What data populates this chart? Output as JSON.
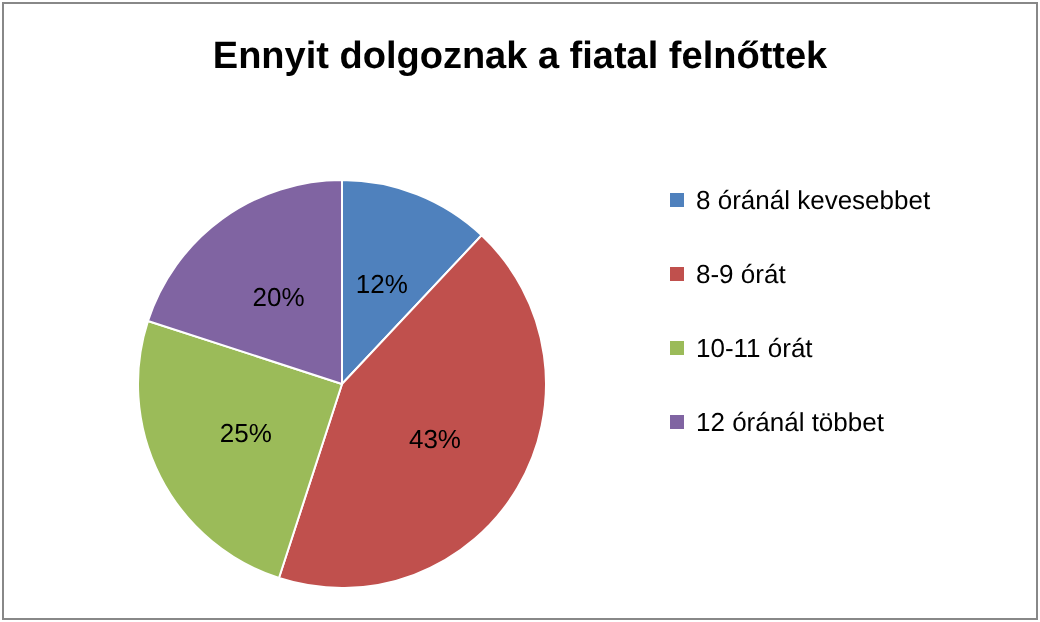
{
  "chart_data": {
    "type": "pie",
    "title": "Ennyit dolgoznak a fiatal felnőttek",
    "categories": [
      "8 óránál kevesebbet",
      "8-9 órát",
      "10-11 órát",
      "12 óránál többet"
    ],
    "values": [
      12,
      43,
      25,
      20
    ],
    "value_labels": [
      "12%",
      "43%",
      "25%",
      "20%"
    ],
    "colors": [
      "#4f81bd",
      "#c0504d",
      "#9bbb59",
      "#8064a2"
    ],
    "legend": "right"
  }
}
